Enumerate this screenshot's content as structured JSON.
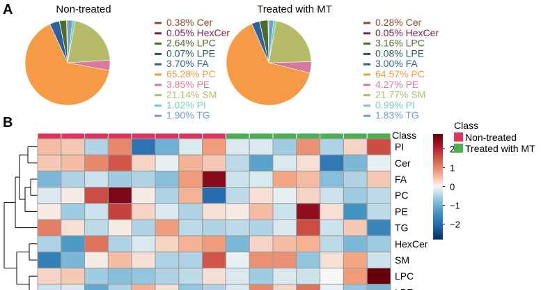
{
  "chart_data": [
    {
      "type": "pie",
      "panel": "A",
      "title": "Non-treated",
      "categories": [
        "Cer",
        "HexCer",
        "LPC",
        "LPE",
        "FA",
        "PC",
        "PE",
        "SM",
        "PI",
        "TG"
      ],
      "values": [
        0.38,
        0.05,
        2.64,
        0.07,
        3.7,
        65.28,
        3.85,
        21.14,
        1.02,
        1.9
      ],
      "labels": [
        "0.38%",
        "0.05%",
        "2.64%",
        "0.07%",
        "3.70%",
        "65.28%",
        "3.85%",
        "21.14%",
        "1.02%",
        "1.90%"
      ],
      "colors": [
        "#8c4a2f",
        "#7a1f4e",
        "#4a6e2a",
        "#1e5e52",
        "#2f5f9e",
        "#f59a45",
        "#d9789f",
        "#b6bb6a",
        "#6fd3b2",
        "#6f9fd0"
      ]
    },
    {
      "type": "pie",
      "panel": "A",
      "title": "Treated with MT",
      "categories": [
        "Cer",
        "HexCer",
        "LPC",
        "LPE",
        "FA",
        "PC",
        "PE",
        "SM",
        "PI",
        "TG"
      ],
      "values": [
        0.28,
        0.05,
        3.16,
        0.08,
        3.0,
        64.57,
        4.27,
        21.77,
        0.99,
        1.83
      ],
      "labels": [
        "0.28%",
        "0.05%",
        "3.16%",
        "0.08%",
        "3.00%",
        "64.57%",
        "4.27%",
        "21.77%",
        "0.99%",
        "1.83%"
      ],
      "colors": [
        "#8c4a2f",
        "#7a1f4e",
        "#4a6e2a",
        "#1e5e52",
        "#2f5f9e",
        "#f59a45",
        "#d9789f",
        "#b6bb6a",
        "#6fd3b2",
        "#6f9fd0"
      ]
    },
    {
      "type": "heatmap",
      "panel": "B",
      "rows": [
        "PI",
        "Cer",
        "FA",
        "PC",
        "PE",
        "TG",
        "HexCer",
        "SM",
        "LPC",
        "LPE"
      ],
      "annotation_label": "Class",
      "column_classes": [
        "Non-treated",
        "Non-treated",
        "Non-treated",
        "Non-treated",
        "Non-treated",
        "Non-treated",
        "Non-treated",
        "Non-treated",
        "Treated with MT",
        "Treated with MT",
        "Treated with MT",
        "Treated with MT",
        "Treated with MT",
        "Treated with MT",
        "Treated with MT"
      ],
      "class_colors": {
        "Non-treated": "#e3325e",
        "Treated with MT": "#4bb050"
      },
      "values": [
        [
          0.5,
          0.4,
          -0.5,
          1.0,
          -1.9,
          -1.0,
          -0.2,
          0.8,
          -0.2,
          -0.2,
          -0.6,
          0.9,
          -0.5,
          0.3,
          1.6
        ],
        [
          0.4,
          0.5,
          1.0,
          1.5,
          0.3,
          -0.1,
          0.6,
          0.4,
          -0.4,
          -1.2,
          -0.2,
          0.2,
          -1.8,
          -0.9,
          -0.1
        ],
        [
          -0.9,
          -0.5,
          -0.3,
          -0.6,
          -0.5,
          -0.8,
          0.8,
          2.5,
          -0.3,
          -0.2,
          0.7,
          0.5,
          -0.8,
          -0.5,
          0.4
        ],
        [
          -0.2,
          0.1,
          1.6,
          2.6,
          0.1,
          -0.5,
          0.6,
          -2.0,
          -0.4,
          0.2,
          -0.1,
          0.3,
          -0.3,
          -0.6,
          -0.4
        ],
        [
          0.1,
          -0.6,
          -0.3,
          1.7,
          0.3,
          -0.2,
          -0.5,
          0.2,
          0.1,
          0.5,
          -0.3,
          2.4,
          0.2,
          -1.4,
          -0.4
        ],
        [
          1.1,
          0.2,
          -0.4,
          0.1,
          -0.5,
          0.8,
          -0.4,
          -0.5,
          -0.4,
          -0.5,
          -0.2,
          1.6,
          -0.3,
          0.4,
          -1.6
        ],
        [
          -0.5,
          -1.3,
          1.2,
          -0.5,
          -0.2,
          0.3,
          0.6,
          0.8,
          -0.9,
          0.3,
          0.5,
          0.6,
          -0.4,
          -0.9,
          -0.6
        ],
        [
          -1.7,
          -0.9,
          0.1,
          0.5,
          0.2,
          -0.5,
          -0.5,
          1.5,
          -0.1,
          0.9,
          0.9,
          -0.7,
          0.2,
          0.7,
          -0.3
        ],
        [
          0.3,
          0.4,
          -0.6,
          -0.8,
          -0.7,
          -0.5,
          -0.4,
          0.2,
          -0.2,
          -0.6,
          -0.2,
          -0.3,
          0.0,
          0.8,
          3.0
        ],
        [
          -0.3,
          -0.2,
          -1.1,
          -0.5,
          0.6,
          0.2,
          -0.7,
          -0.5,
          -0.2,
          1.0,
          0.3,
          1.2,
          -0.1,
          -0.7,
          -0.9
        ]
      ],
      "colorbar": {
        "min": -2.8,
        "max": 2.8,
        "ticks": [
          -2,
          -1,
          0,
          1,
          2
        ],
        "tick_labels": [
          "−2",
          "−1",
          "0",
          "1",
          "2"
        ]
      },
      "legend_title": "Class",
      "legend_entries": [
        "Non-treated",
        "Treated with MT"
      ]
    }
  ],
  "panel_labels": {
    "a": "A",
    "b": "B"
  }
}
